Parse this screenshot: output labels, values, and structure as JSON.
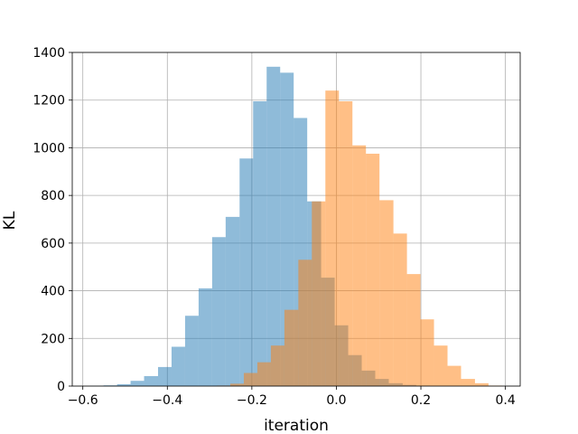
{
  "chart_data": {
    "type": "bar",
    "title": "",
    "xlabel": "iteration",
    "ylabel": "KL",
    "xlim": [
      -0.625,
      0.435
    ],
    "ylim": [
      0,
      1400
    ],
    "xticks": [
      "−0.6",
      "−0.4",
      "−0.2",
      "0.0",
      "0.2",
      "0.4"
    ],
    "xtick_values": [
      -0.6,
      -0.4,
      -0.2,
      0.0,
      0.2,
      0.4
    ],
    "yticks": [
      "0",
      "200",
      "400",
      "600",
      "800",
      "1000",
      "1200",
      "1400"
    ],
    "ytick_values": [
      0,
      200,
      400,
      600,
      800,
      1000,
      1200,
      1400
    ],
    "grid": true,
    "legend": "none",
    "series": [
      {
        "color": "#1f77b4",
        "opacity": 0.5,
        "bins": [
          {
            "x0": -0.583,
            "x1": -0.551,
            "value": 1
          },
          {
            "x0": -0.551,
            "x1": -0.519,
            "value": 3
          },
          {
            "x0": -0.519,
            "x1": -0.487,
            "value": 8
          },
          {
            "x0": -0.487,
            "x1": -0.455,
            "value": 22
          },
          {
            "x0": -0.455,
            "x1": -0.422,
            "value": 42
          },
          {
            "x0": -0.422,
            "x1": -0.39,
            "value": 80
          },
          {
            "x0": -0.39,
            "x1": -0.358,
            "value": 165
          },
          {
            "x0": -0.358,
            "x1": -0.326,
            "value": 295
          },
          {
            "x0": -0.326,
            "x1": -0.294,
            "value": 410
          },
          {
            "x0": -0.294,
            "x1": -0.262,
            "value": 625
          },
          {
            "x0": -0.262,
            "x1": -0.229,
            "value": 710
          },
          {
            "x0": -0.229,
            "x1": -0.197,
            "value": 955
          },
          {
            "x0": -0.197,
            "x1": -0.165,
            "value": 1195
          },
          {
            "x0": -0.165,
            "x1": -0.133,
            "value": 1340
          },
          {
            "x0": -0.133,
            "x1": -0.101,
            "value": 1315
          },
          {
            "x0": -0.101,
            "x1": -0.069,
            "value": 1125
          },
          {
            "x0": -0.069,
            "x1": -0.036,
            "value": 775
          },
          {
            "x0": -0.036,
            "x1": -0.004,
            "value": 455
          },
          {
            "x0": -0.004,
            "x1": 0.028,
            "value": 255
          },
          {
            "x0": 0.028,
            "x1": 0.06,
            "value": 130
          },
          {
            "x0": 0.06,
            "x1": 0.092,
            "value": 65
          },
          {
            "x0": 0.092,
            "x1": 0.124,
            "value": 30
          },
          {
            "x0": 0.124,
            "x1": 0.157,
            "value": 12
          },
          {
            "x0": 0.157,
            "x1": 0.189,
            "value": 5
          },
          {
            "x0": 0.189,
            "x1": 0.221,
            "value": 2
          }
        ]
      },
      {
        "color": "#ff7f0e",
        "opacity": 0.5,
        "bins": [
          {
            "x0": -0.283,
            "x1": -0.251,
            "value": 2
          },
          {
            "x0": -0.251,
            "x1": -0.219,
            "value": 10
          },
          {
            "x0": -0.219,
            "x1": -0.187,
            "value": 55
          },
          {
            "x0": -0.187,
            "x1": -0.155,
            "value": 100
          },
          {
            "x0": -0.155,
            "x1": -0.123,
            "value": 170
          },
          {
            "x0": -0.123,
            "x1": -0.09,
            "value": 320
          },
          {
            "x0": -0.09,
            "x1": -0.058,
            "value": 530
          },
          {
            "x0": -0.058,
            "x1": -0.026,
            "value": 775
          },
          {
            "x0": -0.026,
            "x1": 0.006,
            "value": 1240
          },
          {
            "x0": 0.006,
            "x1": 0.038,
            "value": 1195
          },
          {
            "x0": 0.038,
            "x1": 0.07,
            "value": 1010
          },
          {
            "x0": 0.07,
            "x1": 0.102,
            "value": 975
          },
          {
            "x0": 0.102,
            "x1": 0.135,
            "value": 780
          },
          {
            "x0": 0.135,
            "x1": 0.167,
            "value": 640
          },
          {
            "x0": 0.167,
            "x1": 0.199,
            "value": 470
          },
          {
            "x0": 0.199,
            "x1": 0.231,
            "value": 280
          },
          {
            "x0": 0.231,
            "x1": 0.263,
            "value": 170
          },
          {
            "x0": 0.263,
            "x1": 0.295,
            "value": 85
          },
          {
            "x0": 0.295,
            "x1": 0.328,
            "value": 30
          },
          {
            "x0": 0.328,
            "x1": 0.36,
            "value": 12
          },
          {
            "x0": 0.36,
            "x1": 0.392,
            "value": 2
          }
        ]
      }
    ]
  }
}
